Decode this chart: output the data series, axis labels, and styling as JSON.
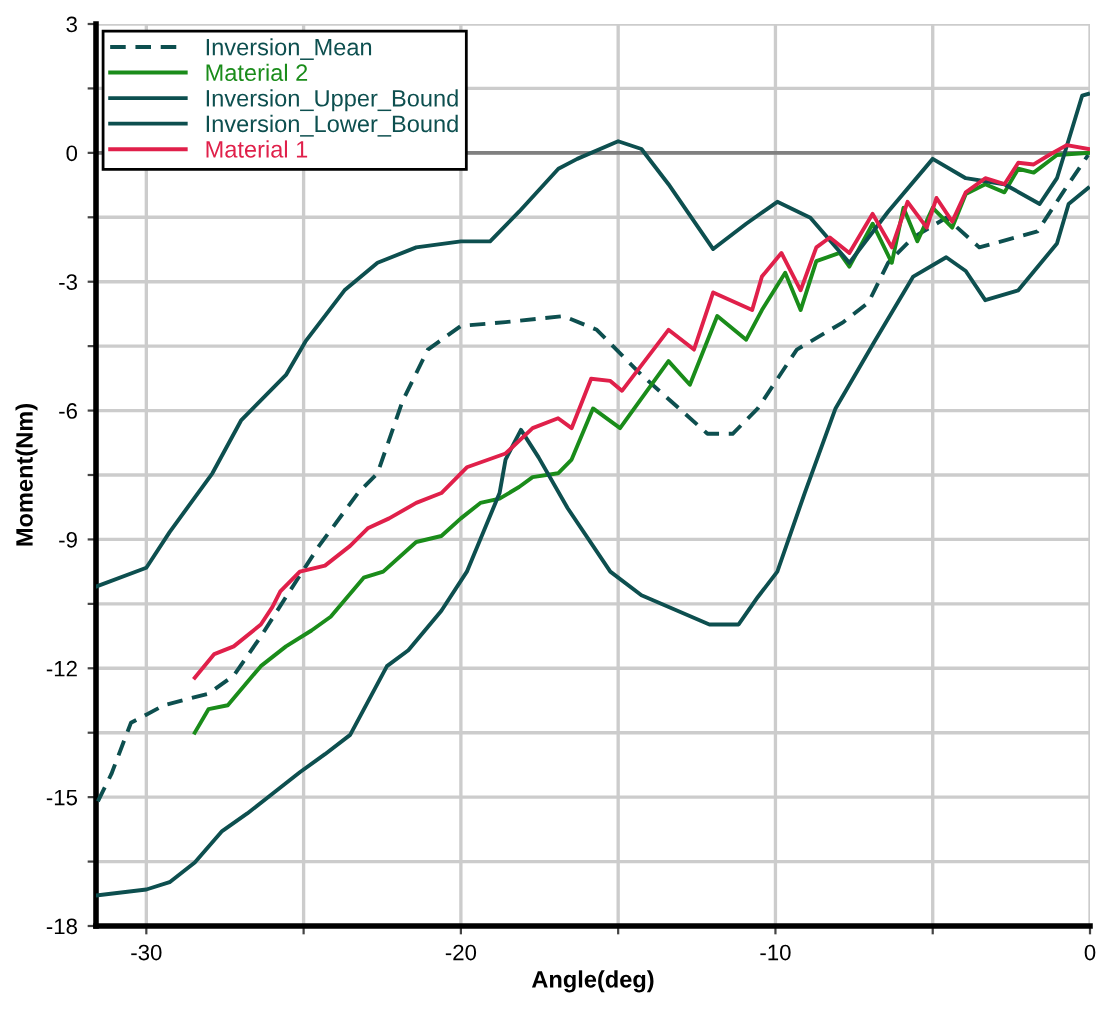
{
  "chart_data": {
    "type": "line",
    "xlabel": "Angle(deg)",
    "ylabel": "Moment(Nm)",
    "xlim": [
      -31.6,
      0
    ],
    "ylim": [
      -18,
      3
    ],
    "xticks": [
      -30,
      {
        "value": -25,
        "label": null
      },
      -20,
      {
        "value": -15,
        "label": null
      },
      -10,
      {
        "value": -5,
        "label": null
      },
      0
    ],
    "yticks": [
      -18,
      {
        "value": -16.5,
        "label": null
      },
      -15,
      {
        "value": -13.5,
        "label": null
      },
      -12,
      {
        "value": -10.5,
        "label": null
      },
      -9,
      {
        "value": -7.5,
        "label": null
      },
      -6,
      {
        "value": -4.5,
        "label": null
      },
      -3,
      {
        "value": -1.5,
        "label": null
      },
      0,
      {
        "value": 1.5,
        "label": null
      },
      3
    ],
    "grid": true,
    "legend": "top left",
    "marker": "none",
    "ref_lines": [
      {
        "axis": "y",
        "value": 0,
        "color": "#808080"
      }
    ],
    "series": [
      {
        "name": "Inversion_Mean",
        "color": "#0d4f4f",
        "line_style": "dashed",
        "x": [
          -31.54,
          -31.11,
          -30.49,
          -29.44,
          -28.02,
          -27.22,
          -26.36,
          -25.56,
          -24.51,
          -23.27,
          -22.65,
          -21.85,
          -21.05,
          -20.0,
          -18.58,
          -16.73,
          -15.68,
          -14.26,
          -12.16,
          -11.36,
          -10.56,
          -9.32,
          -7.84,
          -7.04,
          -6.42,
          -5.62,
          -4.57,
          -3.52,
          -1.67,
          -0.86,
          -0.06
        ],
        "values": [
          -15.1,
          -14.46,
          -13.27,
          -12.86,
          -12.59,
          -12.17,
          -11.26,
          -10.34,
          -9.15,
          -7.92,
          -7.46,
          -5.77,
          -4.58,
          -4.03,
          -3.94,
          -3.8,
          -4.12,
          -5.17,
          -6.54,
          -6.54,
          -5.95,
          -4.58,
          -3.94,
          -3.48,
          -2.56,
          -1.97,
          -1.51,
          -2.2,
          -1.83,
          -0.92,
          -0.05
        ]
      },
      {
        "name": "Material 2",
        "color": "#1a8c1a",
        "line_style": "solid",
        "x": [
          -28.46,
          -28.02,
          -27.41,
          -26.36,
          -25.56,
          -24.75,
          -24.14,
          -23.09,
          -22.47,
          -21.42,
          -20.62,
          -20.0,
          -19.38,
          -18.77,
          -18.15,
          -17.72,
          -16.91,
          -16.48,
          -15.8,
          -14.94,
          -13.4,
          -12.72,
          -11.85,
          -10.93,
          -10.43,
          -9.69,
          -9.2,
          -8.7,
          -7.96,
          -7.65,
          -6.91,
          -6.3,
          -5.93,
          -5.49,
          -5.0,
          -4.38,
          -3.95,
          -3.33,
          -2.72,
          -2.28,
          -1.79,
          -1.05,
          -0.06
        ],
        "values": [
          -13.5,
          -12.95,
          -12.86,
          -11.95,
          -11.49,
          -11.12,
          -10.8,
          -9.89,
          -9.75,
          -9.06,
          -8.92,
          -8.51,
          -8.15,
          -8.05,
          -7.78,
          -7.55,
          -7.46,
          -7.14,
          -5.95,
          -6.41,
          -4.85,
          -5.4,
          -3.8,
          -4.35,
          -3.66,
          -2.79,
          -3.66,
          -2.52,
          -2.33,
          -2.65,
          -1.65,
          -2.56,
          -1.28,
          -2.06,
          -1.28,
          -1.74,
          -0.96,
          -0.73,
          -0.92,
          -0.37,
          -0.46,
          -0.05,
          0.0
        ]
      },
      {
        "name": "Inversion_Upper_Bound",
        "color": "#0d4f4f",
        "line_style": "solid",
        "x": [
          -31.6,
          -30.0,
          -29.26,
          -27.9,
          -26.98,
          -25.56,
          -24.94,
          -23.7,
          -22.65,
          -21.42,
          -20.0,
          -19.07,
          -18.15,
          -16.9,
          -16.3,
          -15.0,
          -14.26,
          -13.4,
          -11.98,
          -10.93,
          -9.94,
          -8.89,
          -7.65,
          -6.42,
          -5.0,
          -3.95,
          -2.72,
          -1.6,
          -1.05,
          -0.25,
          -0.06
        ],
        "values": [
          -10.1,
          -9.66,
          -8.83,
          -7.46,
          -6.22,
          -5.17,
          -4.39,
          -3.2,
          -2.56,
          -2.2,
          -2.06,
          -2.06,
          -1.37,
          -0.37,
          -0.14,
          0.27,
          0.09,
          -0.73,
          -2.24,
          -1.65,
          -1.14,
          -1.51,
          -2.56,
          -1.37,
          -0.14,
          -0.59,
          -0.73,
          -1.19,
          -0.59,
          1.33,
          1.37
        ]
      },
      {
        "name": "Inversion_Lower_Bound",
        "color": "#0d4f4f",
        "line_style": "solid",
        "x": [
          -31.6,
          -30.0,
          -29.26,
          -28.46,
          -27.59,
          -26.79,
          -25.99,
          -25.12,
          -24.32,
          -23.52,
          -22.35,
          -21.67,
          -20.62,
          -19.81,
          -18.77,
          -18.58,
          -18.09,
          -17.53,
          -16.6,
          -15.25,
          -14.26,
          -12.1,
          -11.17,
          -10.56,
          -9.94,
          -9.07,
          -8.09,
          -6.85,
          -5.62,
          -4.57,
          -3.95,
          -3.33,
          -2.28,
          -1.05,
          -0.68,
          -0.06
        ],
        "values": [
          -17.29,
          -17.15,
          -16.98,
          -16.52,
          -15.79,
          -15.38,
          -14.92,
          -14.42,
          -14.0,
          -13.55,
          -11.95,
          -11.58,
          -10.66,
          -9.75,
          -7.92,
          -7.14,
          -6.45,
          -7.09,
          -8.28,
          -9.75,
          -10.3,
          -10.98,
          -10.98,
          -10.34,
          -9.75,
          -7.92,
          -5.95,
          -4.39,
          -2.88,
          -2.43,
          -2.75,
          -3.43,
          -3.2,
          -2.11,
          -1.19,
          -0.82
        ]
      },
      {
        "name": "Material 1",
        "color": "#e0204a",
        "line_style": "solid",
        "x": [
          -28.46,
          -27.84,
          -27.22,
          -26.36,
          -25.99,
          -25.74,
          -25.12,
          -24.32,
          -23.52,
          -22.96,
          -22.28,
          -21.42,
          -20.62,
          -19.81,
          -18.58,
          -17.72,
          -16.91,
          -16.48,
          -15.86,
          -15.25,
          -14.88,
          -13.4,
          -12.59,
          -11.98,
          -10.74,
          -10.43,
          -9.81,
          -9.2,
          -8.7,
          -8.27,
          -7.65,
          -6.91,
          -6.3,
          -5.8,
          -5.19,
          -4.88,
          -4.38,
          -3.95,
          -3.33,
          -2.72,
          -2.28,
          -1.79,
          -1.3,
          -0.74,
          -0.06
        ],
        "values": [
          -12.22,
          -11.67,
          -11.49,
          -10.98,
          -10.57,
          -10.21,
          -9.75,
          -9.61,
          -9.15,
          -8.74,
          -8.51,
          -8.15,
          -7.92,
          -7.32,
          -7.0,
          -6.41,
          -6.18,
          -6.41,
          -5.26,
          -5.31,
          -5.54,
          -4.12,
          -4.58,
          -3.25,
          -3.66,
          -2.88,
          -2.33,
          -3.2,
          -2.2,
          -1.97,
          -2.33,
          -1.42,
          -2.2,
          -1.14,
          -1.74,
          -1.05,
          -1.6,
          -0.92,
          -0.59,
          -0.73,
          -0.23,
          -0.27,
          -0.05,
          0.18,
          0.09
        ]
      }
    ]
  }
}
